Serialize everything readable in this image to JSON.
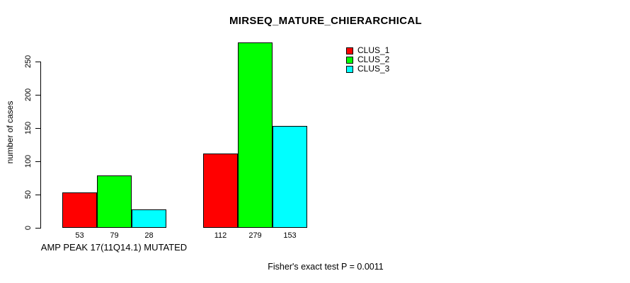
{
  "chart_data": {
    "type": "bar",
    "title": "MIRSEQ_MATURE_CHIERARCHICAL",
    "ylabel": "number of cases",
    "xlabel": "",
    "yticks": [
      0,
      50,
      100,
      150,
      200,
      250
    ],
    "ylim": [
      0,
      280
    ],
    "grid": false,
    "legend_position": "top-right",
    "bar_value_labels_shown": true,
    "series": [
      {
        "name": "CLUS_1",
        "color": "#FF0000"
      },
      {
        "name": "CLUS_2",
        "color": "#00FF00"
      },
      {
        "name": "CLUS_3",
        "color": "#00FFFF"
      }
    ],
    "groups": [
      {
        "label": "AMP PEAK 17(11Q14.1) MUTATED",
        "values": [
          53,
          79,
          28
        ]
      },
      {
        "label": "",
        "values": [
          112,
          279,
          153
        ]
      }
    ],
    "annotation": "Fisher's exact test P = 0.0011"
  }
}
